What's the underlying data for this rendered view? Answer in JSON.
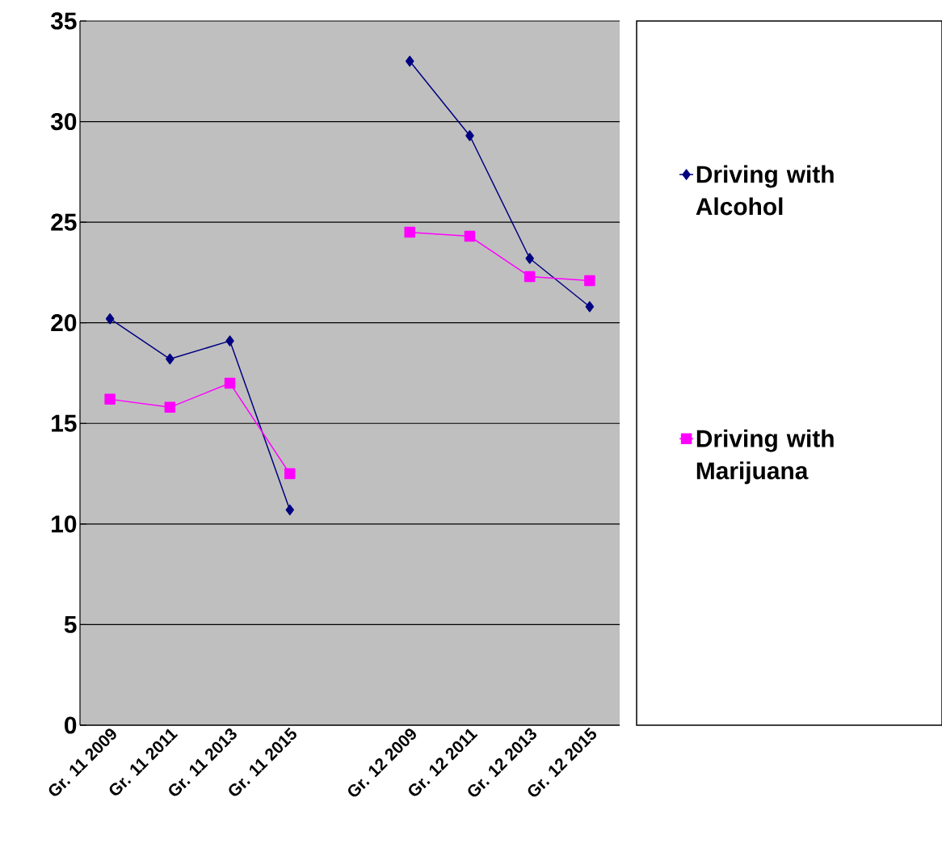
{
  "chart_data": {
    "type": "line",
    "categories": [
      "Gr. 11 2009",
      "Gr. 11 2011",
      "Gr. 11 2013",
      "Gr. 11 2015",
      null,
      "Gr. 12 2009",
      "Gr. 12 2011",
      "Gr. 12 2013",
      "Gr. 12 2015"
    ],
    "series": [
      {
        "name": "Driving with Alcohol",
        "color": "#000080",
        "marker": "diamond",
        "values": [
          20.2,
          18.2,
          19.1,
          10.7,
          null,
          33.0,
          29.3,
          23.2,
          20.8
        ]
      },
      {
        "name": "Driving with Marijuana",
        "color": "#ff00ff",
        "marker": "square",
        "values": [
          16.2,
          15.8,
          17.0,
          12.5,
          null,
          24.5,
          24.3,
          22.3,
          22.1
        ]
      }
    ],
    "ylim": [
      0,
      35
    ],
    "yticks": [
      0,
      5,
      10,
      15,
      20,
      25,
      30,
      35
    ],
    "grid": "y",
    "legend": "right",
    "line_style": "solid"
  }
}
